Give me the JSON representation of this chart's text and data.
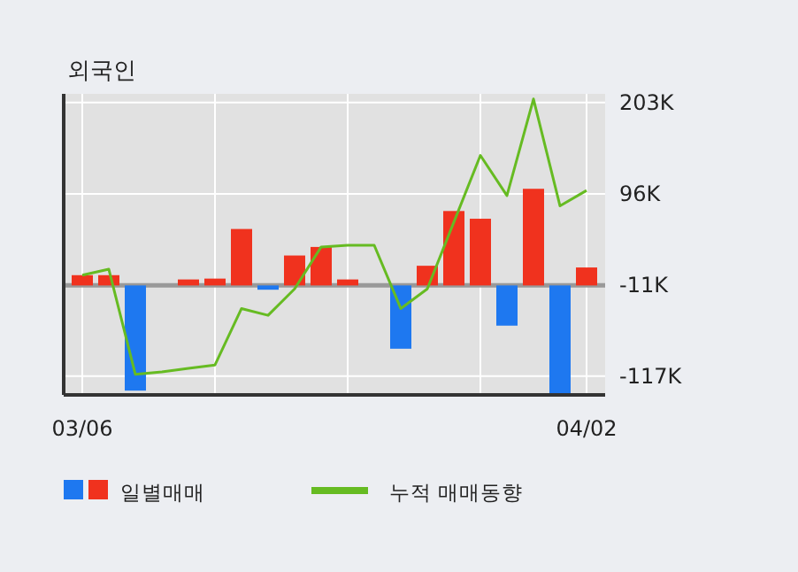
{
  "chart_data": {
    "type": "bar",
    "title": "외국인",
    "categories": [
      "03/06",
      null,
      null,
      null,
      null,
      null,
      null,
      null,
      null,
      null,
      null,
      null,
      null,
      null,
      null,
      null,
      null,
      null,
      null,
      "04/02"
    ],
    "series": [
      {
        "name": "일별매매",
        "colors": [
          "#f0321e",
          "#f0321e",
          "#1e78f0",
          null,
          "#f0321e",
          "#f0321e",
          "#f0321e",
          "#1e78f0",
          "#f0321e",
          "#f0321e",
          "#f0321e",
          null,
          "#1e78f0",
          "#f0321e",
          "#f0321e",
          "#f0321e",
          "#1e78f0",
          "#f0321e",
          "#1e78f0",
          "#f0321e"
        ],
        "base": [
          -11,
          -11,
          -11,
          null,
          -11,
          -11,
          -11,
          -11,
          -11,
          -11,
          -11,
          null,
          -11,
          -11,
          -11,
          -11,
          -11,
          -11,
          -11,
          -11
        ],
        "values": [
          12,
          12,
          -123,
          null,
          7,
          8,
          66,
          -5,
          35,
          45,
          7,
          null,
          -74,
          23,
          87,
          78,
          -47,
          113,
          -126,
          21
        ]
      },
      {
        "name": "누적 매매동향",
        "type": "line",
        "color": "#66bb22",
        "values": [
          1,
          8,
          -115,
          -112,
          -108,
          -104,
          -38,
          -46,
          -15,
          34,
          36,
          36,
          -38,
          -15,
          63,
          141,
          94,
          207,
          82,
          100
        ]
      }
    ],
    "ylim": [
      -139,
      213
    ],
    "yticks": [
      {
        "value": 203,
        "label": "203K"
      },
      {
        "value": 96,
        "label": "96K"
      },
      {
        "value": -11,
        "label": "-11K"
      },
      {
        "value": -117,
        "label": "-117K"
      }
    ],
    "ref_lines": [
      {
        "axis": "y",
        "value": -11,
        "color": "#999999"
      }
    ],
    "grid": true,
    "legend": "bottom"
  }
}
